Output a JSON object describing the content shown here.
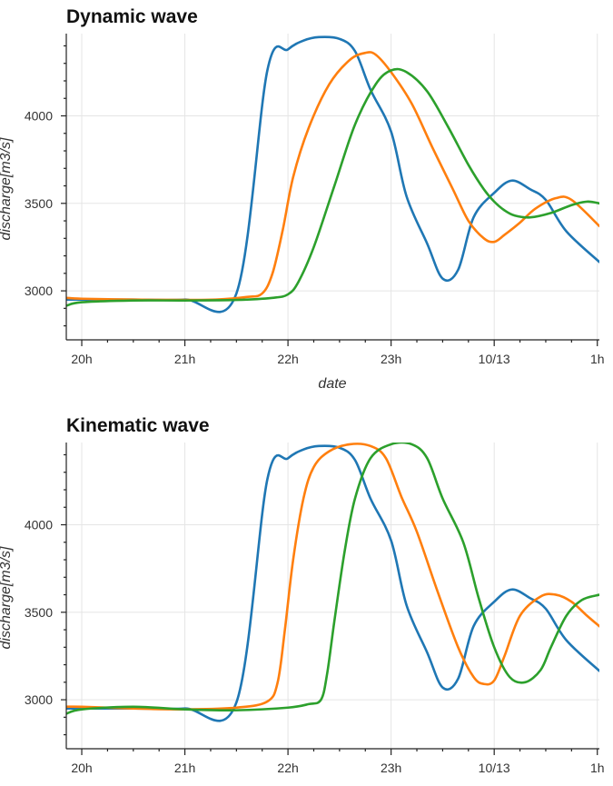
{
  "chart_data": [
    {
      "type": "line",
      "title": "Dynamic wave",
      "xlabel": "date",
      "ylabel": "discharge[m3/s]",
      "x_tick_labels": [
        "20h",
        "21h",
        "22h",
        "23h",
        "10/13",
        "1h"
      ],
      "x_ticks_hours": [
        0,
        1,
        2,
        3,
        4,
        5
      ],
      "y_ticks": [
        3000,
        3500,
        4000
      ],
      "xlim_hours": [
        -0.15,
        5.02
      ],
      "ylim": [
        2720,
        4470
      ],
      "grid": true,
      "legend": "none",
      "series": [
        {
          "color": "#1f77b4",
          "x": [
            -0.15,
            0,
            0.5,
            1.0,
            1.5,
            1.8,
            2.0,
            2.15,
            2.3,
            2.5,
            2.65,
            2.8,
            3.0,
            3.15,
            3.35,
            3.5,
            3.65,
            3.8,
            4.0,
            4.17,
            4.35,
            4.5,
            4.7,
            5.02
          ],
          "y": [
            2950,
            2950,
            2950,
            2950,
            2985,
            4260,
            4380,
            4430,
            4450,
            4440,
            4370,
            4150,
            3910,
            3540,
            3270,
            3070,
            3120,
            3420,
            3560,
            3630,
            3580,
            3520,
            3340,
            3165
          ]
        },
        {
          "color": "#ff7f0e",
          "x": [
            -0.15,
            0,
            0.5,
            1.0,
            1.3,
            1.6,
            1.75,
            1.85,
            1.95,
            2.05,
            2.2,
            2.4,
            2.6,
            2.75,
            2.85,
            3.0,
            3.2,
            3.4,
            3.6,
            3.75,
            3.9,
            4.0,
            4.1,
            4.25,
            4.4,
            4.6,
            4.75,
            5.02
          ],
          "y": [
            2960,
            2955,
            2950,
            2948,
            2950,
            2965,
            2985,
            3100,
            3350,
            3650,
            3930,
            4180,
            4320,
            4360,
            4350,
            4250,
            4070,
            3820,
            3580,
            3400,
            3300,
            3280,
            3320,
            3390,
            3470,
            3530,
            3520,
            3370
          ]
        },
        {
          "color": "#2ca02c",
          "x": [
            -0.15,
            0,
            0.5,
            1.0,
            1.5,
            1.85,
            2.0,
            2.1,
            2.25,
            2.45,
            2.65,
            2.85,
            3.0,
            3.15,
            3.35,
            3.55,
            3.75,
            3.9,
            4.0,
            4.1,
            4.2,
            4.35,
            4.55,
            4.75,
            4.9,
            5.02
          ],
          "y": [
            2915,
            2935,
            2945,
            2945,
            2948,
            2960,
            2980,
            3050,
            3250,
            3600,
            3950,
            4180,
            4260,
            4250,
            4140,
            3940,
            3720,
            3580,
            3510,
            3460,
            3430,
            3420,
            3445,
            3490,
            3510,
            3500
          ]
        }
      ]
    },
    {
      "type": "line",
      "title": "Kinematic wave",
      "xlabel": "date",
      "ylabel": "discharge[m3/s]",
      "x_tick_labels": [
        "20h",
        "21h",
        "22h",
        "23h",
        "10/13",
        "1h"
      ],
      "x_ticks_hours": [
        0,
        1,
        2,
        3,
        4,
        5
      ],
      "y_ticks": [
        3000,
        3500,
        4000
      ],
      "xlim_hours": [
        -0.15,
        5.02
      ],
      "ylim": [
        2720,
        4470
      ],
      "grid": true,
      "legend": "none",
      "series": [
        {
          "color": "#1f77b4",
          "x": [
            -0.15,
            0,
            0.5,
            1.0,
            1.5,
            1.8,
            2.0,
            2.15,
            2.3,
            2.5,
            2.65,
            2.8,
            3.0,
            3.15,
            3.35,
            3.5,
            3.65,
            3.8,
            4.0,
            4.17,
            4.35,
            4.5,
            4.7,
            5.02
          ],
          "y": [
            2950,
            2950,
            2950,
            2950,
            2985,
            4260,
            4380,
            4430,
            4450,
            4440,
            4370,
            4150,
            3910,
            3540,
            3270,
            3070,
            3120,
            3420,
            3560,
            3630,
            3580,
            3520,
            3340,
            3165
          ]
        },
        {
          "color": "#ff7f0e",
          "x": [
            -0.15,
            0,
            0.5,
            1.0,
            1.5,
            1.8,
            1.9,
            1.97,
            2.05,
            2.15,
            2.25,
            2.4,
            2.6,
            2.8,
            2.95,
            3.1,
            3.25,
            3.45,
            3.65,
            3.8,
            3.9,
            4.0,
            4.1,
            4.25,
            4.45,
            4.6,
            4.75,
            4.9,
            5.02
          ],
          "y": [
            2960,
            2960,
            2950,
            2945,
            2955,
            2990,
            3100,
            3400,
            3800,
            4150,
            4330,
            4420,
            4460,
            4450,
            4380,
            4160,
            3960,
            3620,
            3300,
            3130,
            3090,
            3110,
            3250,
            3480,
            3590,
            3600,
            3560,
            3480,
            3420
          ]
        },
        {
          "color": "#2ca02c",
          "x": [
            -0.15,
            0,
            0.5,
            1.0,
            1.5,
            2.0,
            2.2,
            2.32,
            2.38,
            2.45,
            2.55,
            2.65,
            2.8,
            3.0,
            3.2,
            3.35,
            3.5,
            3.7,
            3.85,
            4.0,
            4.15,
            4.3,
            4.45,
            4.55,
            4.7,
            4.85,
            5.02
          ],
          "y": [
            2920,
            2945,
            2960,
            2945,
            2940,
            2955,
            2975,
            3000,
            3150,
            3450,
            3850,
            4150,
            4380,
            4460,
            4460,
            4380,
            4150,
            3900,
            3580,
            3300,
            3130,
            3100,
            3170,
            3300,
            3480,
            3570,
            3600
          ]
        }
      ]
    }
  ]
}
